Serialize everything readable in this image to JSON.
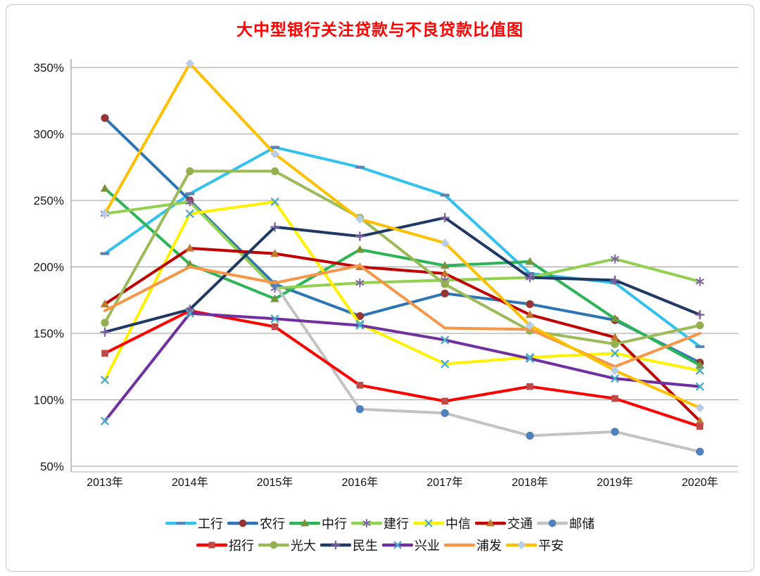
{
  "title": "大中型银行关注贷款与不良贷款比值图",
  "title_color": "#ff0000",
  "chart_data": {
    "type": "line",
    "categories": [
      "2013年",
      "2014年",
      "2015年",
      "2016年",
      "2017年",
      "2018年",
      "2019年",
      "2020年"
    ],
    "y_ticks": [
      {
        "value": 350,
        "label": "350%"
      },
      {
        "value": 300,
        "label": "300%"
      },
      {
        "value": 250,
        "label": "250%"
      },
      {
        "value": 200,
        "label": "200%"
      },
      {
        "value": 150,
        "label": "150%"
      },
      {
        "value": 100,
        "label": "100%"
      },
      {
        "value": 50,
        "label": "50%"
      }
    ],
    "ylim": [
      50,
      357
    ],
    "unit": "%",
    "grid": true,
    "legend_position": "bottom",
    "series": [
      {
        "name": "工行",
        "color": "#33C1F0",
        "marker": "dash",
        "marker_color": "#5E7FB2",
        "values": [
          210,
          255,
          290,
          275,
          254,
          195,
          188,
          140
        ]
      },
      {
        "name": "农行",
        "color": "#2E75B6",
        "marker": "circle",
        "marker_color": "#943634",
        "values": [
          312,
          250,
          187,
          163,
          180,
          172,
          160,
          128
        ]
      },
      {
        "name": "中行",
        "color": "#2DB457",
        "marker": "triangle",
        "marker_color": "#77933C",
        "values": [
          259,
          202,
          176,
          213,
          201,
          204,
          161,
          126
        ]
      },
      {
        "name": "建行",
        "color": "#92D050",
        "marker": "asterisk",
        "marker_color": "#7E62A1",
        "values": [
          240,
          249,
          184,
          188,
          190,
          192,
          206,
          189
        ]
      },
      {
        "name": "中信",
        "color": "#FFF200",
        "marker": "x",
        "marker_color": "#4BACC6",
        "values": [
          115,
          240,
          249,
          157,
          127,
          132,
          135,
          122
        ]
      },
      {
        "name": "交通",
        "color": "#C00000",
        "marker": "triangle",
        "marker_color": "#C0792F",
        "values": [
          172,
          214,
          210,
          200,
          195,
          164,
          147,
          84
        ]
      },
      {
        "name": "邮储",
        "color": "#C3C3C3",
        "marker": "circle",
        "marker_color": "#4F81BD",
        "values": [
          null,
          null,
          187,
          93,
          90,
          73,
          76,
          61
        ]
      },
      {
        "name": "招行",
        "color": "#FF0000",
        "marker": "square",
        "marker_color": "#BE4B48",
        "values": [
          135,
          167,
          155,
          111,
          99,
          110,
          101,
          80
        ]
      },
      {
        "name": "光大",
        "color": "#9BBB59",
        "marker": "circle",
        "marker_color": "#94AF4F",
        "values": [
          158,
          272,
          272,
          237,
          187,
          152,
          142,
          156
        ]
      },
      {
        "name": "民生",
        "color": "#1F3864",
        "marker": "plus",
        "marker_color": "#7E62A1",
        "values": [
          151,
          168,
          230,
          223,
          237,
          192,
          190,
          164
        ]
      },
      {
        "name": "兴业",
        "color": "#7030A0",
        "marker": "x",
        "marker_color": "#4BACC6",
        "values": [
          84,
          165,
          161,
          156,
          145,
          131,
          116,
          110
        ]
      },
      {
        "name": "浦发",
        "color": "#F79646",
        "marker": "none",
        "marker_color": "#F79646",
        "values": [
          167,
          200,
          188,
          201,
          154,
          153,
          125,
          150
        ]
      },
      {
        "name": "平安",
        "color": "#FFC000",
        "marker": "diamond",
        "marker_color": "#B9CDE5",
        "values": [
          240,
          353,
          285,
          236,
          218,
          156,
          122,
          94
        ]
      }
    ],
    "legend_rows": [
      [
        "工行",
        "农行",
        "中行",
        "建行",
        "中信",
        "交通",
        "邮储"
      ],
      [
        "招行",
        "光大",
        "民生",
        "兴业",
        "浦发",
        "平安"
      ]
    ]
  }
}
